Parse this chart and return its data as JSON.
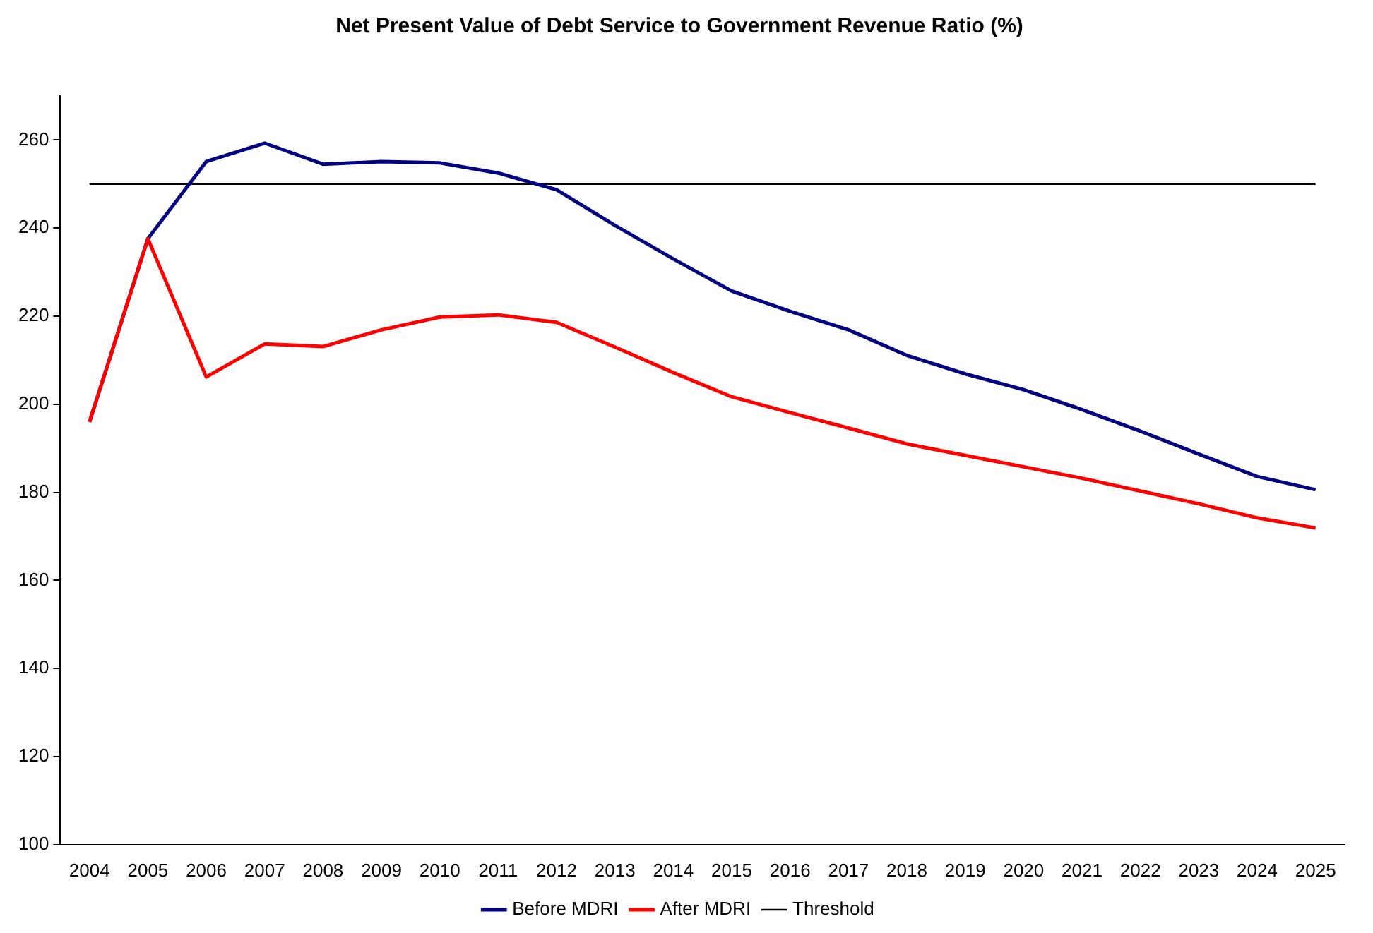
{
  "chart_data": {
    "type": "line",
    "title": "Net Present Value of Debt Service to Government Revenue Ratio (%)",
    "categories": [
      "2004",
      "2005",
      "2006",
      "2007",
      "2008",
      "2009",
      "2010",
      "2011",
      "2012",
      "2013",
      "2014",
      "2015",
      "2016",
      "2017",
      "2018",
      "2019",
      "2020",
      "2021",
      "2022",
      "2023",
      "2024",
      "2025"
    ],
    "series": [
      {
        "name": "Before MDRI",
        "color": "#000080",
        "values": [
          196,
          237.6,
          255.1,
          259.3,
          254.5,
          255.1,
          254.8,
          252.5,
          248.7,
          240.6,
          233,
          225.7,
          221.1,
          216.9,
          211.1,
          206.9,
          203.3,
          198.8,
          193.9,
          188.7,
          183.6,
          180.6
        ]
      },
      {
        "name": "After MDRI",
        "color": "#ff0000",
        "values": [
          196,
          237.6,
          206.2,
          213.7,
          213.1,
          216.9,
          219.8,
          220.3,
          218.6,
          213,
          207.2,
          201.7,
          198.1,
          194.6,
          191,
          188.4,
          185.8,
          183.2,
          180.3,
          177.4,
          174.2,
          171.9
        ]
      },
      {
        "name": "Threshold",
        "color": "#000000",
        "values": [
          250,
          250,
          250,
          250,
          250,
          250,
          250,
          250,
          250,
          250,
          250,
          250,
          250,
          250,
          250,
          250,
          250,
          250,
          250,
          250,
          250,
          250
        ]
      }
    ],
    "ylim": [
      100,
      270
    ],
    "yticks": [
      100,
      120,
      140,
      160,
      180,
      200,
      220,
      240,
      260
    ],
    "grid": false,
    "legend": "bottom",
    "marker": "none",
    "line_style": "solid"
  }
}
